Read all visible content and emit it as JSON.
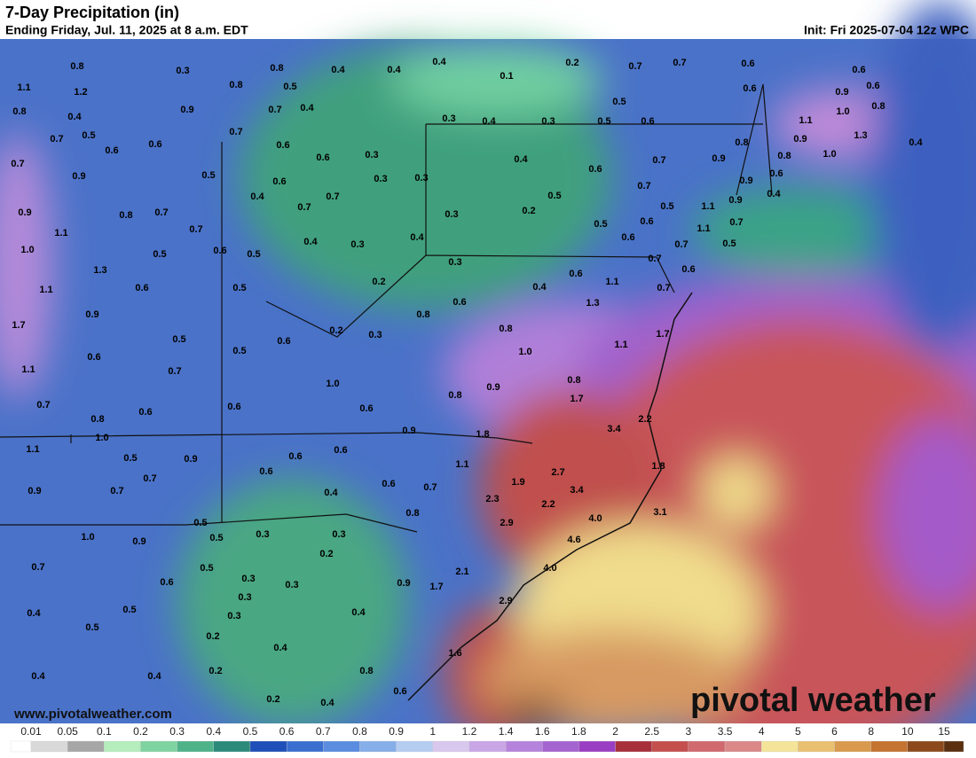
{
  "header": {
    "title": "7-Day Precipitation (in)",
    "subtitle": "Ending Friday, Jul. 11, 2025 at 8 a.m. EDT",
    "init": "Init: Fri 2025-07-04 12z WPC"
  },
  "map": {
    "labels": [
      "0.8",
      "0.3",
      "0.8",
      "0.4",
      "0.4",
      "0.4",
      "0.1",
      "0.2",
      "0.7",
      "0.7",
      "0.6",
      "0.6",
      "1.1",
      "1.2",
      "0.8",
      "0.5",
      "0.6",
      "0.9",
      "0.6",
      "0.8",
      "0.4",
      "0.9",
      "0.7",
      "0.4",
      "0.3",
      "0.4",
      "0.3",
      "0.5",
      "0.6",
      "0.5",
      "1.0",
      "0.8",
      "0.7",
      "0.5",
      "0.6",
      "0.6",
      "0.7",
      "0.6",
      "0.6",
      "0.3",
      "1.1",
      "0.9",
      "1.3",
      "0.4",
      "0.7",
      "0.9",
      "0.5",
      "0.6",
      "0.3",
      "0.3",
      "0.4",
      "0.6",
      "0.7",
      "0.8",
      "0.9",
      "0.8",
      "1.0",
      "0.4",
      "0.7",
      "0.5",
      "0.7",
      "0.9",
      "0.6",
      "0.4",
      "0.9",
      "0.8",
      "0.7",
      "0.7",
      "0.3",
      "0.2",
      "0.5",
      "1.1",
      "0.9",
      "0.7",
      "1.1",
      "0.7",
      "0.4",
      "0.3",
      "0.4",
      "0.5",
      "0.6",
      "0.6",
      "1.1",
      "0.5",
      "1.0",
      "0.5",
      "0.6",
      "0.5",
      "0.3",
      "0.7",
      "0.7",
      "0.6",
      "1.3",
      "0.2",
      "0.6",
      "0.4",
      "1.1",
      "0.7",
      "1.1",
      "0.6",
      "0.5",
      "0.6",
      "1.3",
      "0.9",
      "0.8",
      "1.7",
      "0.2",
      "0.3",
      "0.8",
      "1.7",
      "0.5",
      "0.6",
      "1.1",
      "0.6",
      "0.5",
      "1.0",
      "1.1",
      "0.7",
      "0.8",
      "1.0",
      "0.9",
      "0.8",
      "1.7",
      "0.7",
      "0.6",
      "0.6",
      "0.6",
      "0.8",
      "0.9",
      "3.4",
      "2.2",
      "1.0",
      "1.8",
      "1.1",
      "0.5",
      "0.9",
      "0.6",
      "0.6",
      "1.1",
      "1.8",
      "0.7",
      "0.6",
      "2.7",
      "0.9",
      "0.7",
      "0.4",
      "0.6",
      "0.7",
      "1.9",
      "3.4",
      "2.3",
      "2.2",
      "3.1",
      "0.8",
      "2.9",
      "4.0",
      "0.5",
      "1.0",
      "0.9",
      "0.5",
      "0.3",
      "0.3",
      "4.6",
      "0.2",
      "0.7",
      "0.5",
      "4.0",
      "0.6",
      "0.3",
      "0.3",
      "0.9",
      "1.7",
      "2.1",
      "0.3",
      "2.9",
      "0.5",
      "0.3",
      "0.4",
      "0.4",
      "0.5",
      "0.2",
      "0.4",
      "1.6",
      "0.2",
      "0.8",
      "0.6",
      "0.4",
      "0.4",
      "0.2",
      "0.4"
    ]
  },
  "watermark": "www.pivotalweather.com",
  "brand": "pivotal weather",
  "legend": {
    "ticks": [
      "0.01",
      "0.05",
      "0.1",
      "0.2",
      "0.3",
      "0.4",
      "0.5",
      "0.6",
      "0.7",
      "0.8",
      "0.9",
      "1",
      "1.2",
      "1.4",
      "1.6",
      "1.8",
      "2",
      "2.5",
      "3",
      "3.5",
      "4",
      "5",
      "6",
      "8",
      "10",
      "15"
    ],
    "colors": [
      "#ffffff",
      "#d9d9d9",
      "#a6a6a6",
      "#b5edbd",
      "#7fd3a0",
      "#4fb38a",
      "#2b8a7a",
      "#1f4fb8",
      "#3a6fd0",
      "#5a8ce0",
      "#86aee9",
      "#b6cdf2",
      "#d8c8ee",
      "#c9a6e6",
      "#b683dc",
      "#a565d0",
      "#9a3fc3",
      "#a8303a",
      "#c4504e",
      "#d06a6e",
      "#db8888",
      "#f4e49a",
      "#e8c070",
      "#d99a4e",
      "#c47330",
      "#8c4a1c",
      "#5a3010"
    ]
  }
}
